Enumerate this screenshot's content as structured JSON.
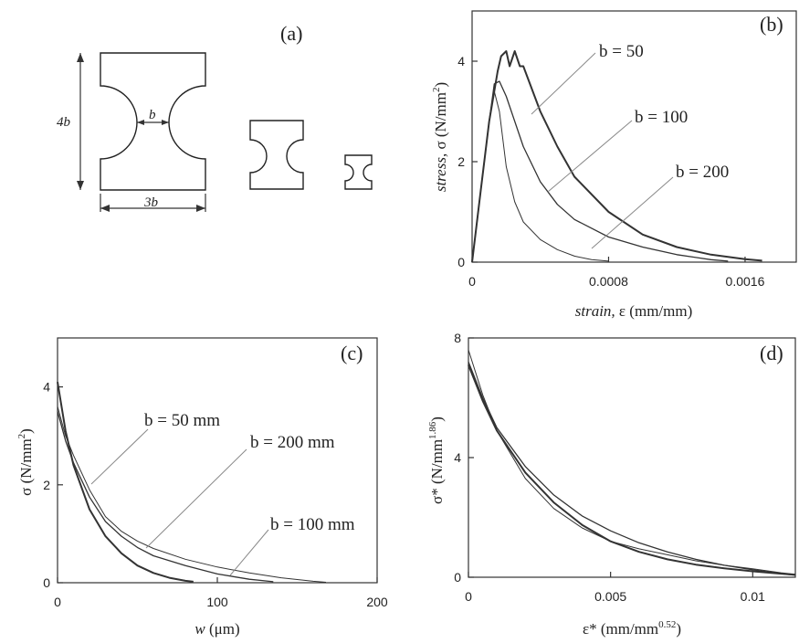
{
  "figure_a": {
    "panel_label": "(a)",
    "dim_height": "4b",
    "dim_ligament": "b",
    "dim_width": "3b",
    "specimen_sizes": [
      {
        "b": 50
      },
      {
        "b": 100
      },
      {
        "b": 200
      }
    ]
  },
  "chart_data": [
    {
      "id": "b",
      "type": "line",
      "panel_label": "(b)",
      "xlabel_italic": "strain,",
      "xlabel_rest": " ε (mm/mm)",
      "ylabel_italic": "stress,",
      "ylabel_rest": " σ (N/mm",
      "ylabel_sup": "2",
      "ylabel_close": ")",
      "xlim": [
        0,
        0.0019
      ],
      "ylim": [
        0,
        5
      ],
      "xticks": [
        0,
        0.0008,
        0.0016
      ],
      "xtick_labels": [
        "0",
        "0.0008",
        "0.0016"
      ],
      "yticks": [
        0,
        2,
        4
      ],
      "ytick_labels": [
        "0",
        "2",
        "4"
      ],
      "series": [
        {
          "name": "b = 50",
          "x": [
            0,
            5e-05,
            0.0001,
            0.00015,
            0.00017,
            0.0002,
            0.00022,
            0.00025,
            0.00028,
            0.0003,
            0.0004,
            0.0005,
            0.0006,
            0.0008,
            0.001,
            0.0012,
            0.0014,
            0.0016,
            0.0017
          ],
          "y": [
            0,
            1.4,
            2.8,
            3.8,
            4.1,
            4.2,
            3.9,
            4.2,
            3.9,
            3.9,
            3.0,
            2.3,
            1.7,
            1.0,
            0.55,
            0.3,
            0.15,
            0.06,
            0.03
          ]
        },
        {
          "name": "b = 100",
          "x": [
            0,
            5e-05,
            0.0001,
            0.00013,
            0.00016,
            0.0002,
            0.0003,
            0.0004,
            0.0005,
            0.0006,
            0.0008,
            0.001,
            0.0012,
            0.0014,
            0.0015
          ],
          "y": [
            0,
            1.4,
            2.8,
            3.55,
            3.6,
            3.3,
            2.3,
            1.6,
            1.15,
            0.85,
            0.5,
            0.3,
            0.15,
            0.05,
            0.02
          ]
        },
        {
          "name": "b = 200",
          "x": [
            0,
            5e-05,
            0.0001,
            0.00013,
            0.00016,
            0.0002,
            0.00025,
            0.0003,
            0.0004,
            0.0005,
            0.0006,
            0.0007,
            0.0008
          ],
          "y": [
            0,
            1.4,
            2.8,
            3.4,
            3.0,
            1.9,
            1.2,
            0.8,
            0.45,
            0.25,
            0.12,
            0.05,
            0.02
          ]
        }
      ],
      "annotations": [
        "b = 50",
        "b = 100",
        "b = 200"
      ]
    },
    {
      "id": "c",
      "type": "line",
      "panel_label": "(c)",
      "xlabel_italic": "w",
      "xlabel_rest": " (μm)",
      "ylabel_italic": "",
      "ylabel_rest": "σ (N/mm",
      "ylabel_sup": "2",
      "ylabel_close": ")",
      "xlim": [
        0,
        200
      ],
      "ylim": [
        0,
        5
      ],
      "xticks": [
        0,
        100,
        200
      ],
      "xtick_labels": [
        "0",
        "100",
        "200"
      ],
      "yticks": [
        0,
        2,
        4
      ],
      "ytick_labels": [
        "0",
        "2",
        "4"
      ],
      "series": [
        {
          "name": "b = 50 mm",
          "x": [
            0,
            5,
            10,
            20,
            30,
            40,
            50,
            60,
            70,
            80,
            85
          ],
          "y": [
            4.1,
            3.1,
            2.4,
            1.5,
            0.95,
            0.6,
            0.35,
            0.2,
            0.1,
            0.04,
            0.02
          ]
        },
        {
          "name": "b = 200 mm",
          "x": [
            0,
            5,
            10,
            20,
            30,
            40,
            50,
            60,
            80,
            100,
            120,
            135
          ],
          "y": [
            3.5,
            2.9,
            2.45,
            1.75,
            1.25,
            0.95,
            0.72,
            0.55,
            0.35,
            0.18,
            0.07,
            0.02
          ]
        },
        {
          "name": "b = 100 mm",
          "x": [
            0,
            5,
            10,
            20,
            30,
            40,
            50,
            60,
            80,
            100,
            120,
            140,
            160,
            168
          ],
          "y": [
            3.6,
            3.0,
            2.6,
            1.9,
            1.35,
            1.05,
            0.85,
            0.7,
            0.48,
            0.32,
            0.2,
            0.1,
            0.03,
            0.01
          ]
        }
      ],
      "annotations": [
        "b = 50 mm",
        "b = 200 mm",
        "b = 100 mm"
      ]
    },
    {
      "id": "d",
      "type": "line",
      "panel_label": "(d)",
      "xlabel_italic": "",
      "xlabel_rest": "ε* (mm/mm",
      "xlabel_sup": "0.52",
      "xlabel_close": ")",
      "ylabel_italic": "",
      "ylabel_rest": "σ* (N/mm",
      "ylabel_sup": "1.86",
      "ylabel_close": ")",
      "xlim": [
        0,
        0.0115
      ],
      "ylim": [
        0,
        8
      ],
      "xticks": [
        0,
        0.005,
        0.01
      ],
      "xtick_labels": [
        "0",
        "0.005",
        "0.01"
      ],
      "yticks": [
        0,
        4,
        8
      ],
      "ytick_labels": [
        "0",
        "4",
        "8"
      ],
      "series": [
        {
          "name": "b = 50",
          "x": [
            0,
            0.0005,
            0.001,
            0.002,
            0.003,
            0.004,
            0.005,
            0.006,
            0.007,
            0.008,
            0.009,
            0.01,
            0.011,
            0.0115
          ],
          "y": [
            7.1,
            5.9,
            4.9,
            3.5,
            2.5,
            1.75,
            1.2,
            0.85,
            0.6,
            0.42,
            0.3,
            0.2,
            0.12,
            0.08
          ]
        },
        {
          "name": "b = 100",
          "x": [
            0,
            0.0005,
            0.001,
            0.002,
            0.003,
            0.004,
            0.005,
            0.006,
            0.007,
            0.008,
            0.009,
            0.01,
            0.011,
            0.0115
          ],
          "y": [
            7.2,
            6.0,
            5.0,
            3.7,
            2.75,
            2.05,
            1.55,
            1.15,
            0.85,
            0.6,
            0.4,
            0.25,
            0.12,
            0.07
          ]
        },
        {
          "name": "b = 200",
          "x": [
            0,
            0.0005,
            0.001,
            0.002,
            0.003,
            0.004,
            0.005,
            0.006,
            0.007,
            0.008,
            0.009,
            0.01,
            0.011,
            0.0115
          ],
          "y": [
            7.6,
            6.1,
            4.9,
            3.3,
            2.3,
            1.65,
            1.2,
            0.95,
            0.75,
            0.55,
            0.4,
            0.28,
            0.15,
            0.1
          ]
        }
      ]
    }
  ]
}
